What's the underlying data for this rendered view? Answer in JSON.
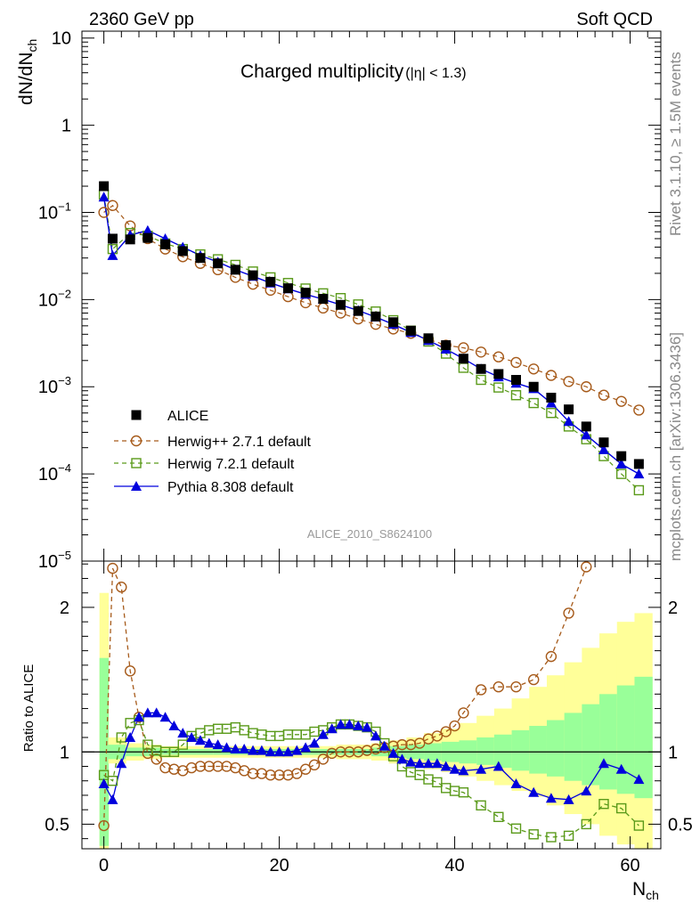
{
  "header": {
    "energy_label": "2360 GeV pp",
    "process_label": "Soft QCD"
  },
  "side_labels": {
    "rivet": "Rivet 3.1.10, ≥ 1.5M events",
    "mcplots": "mcplots.cern.ch [arXiv:1306.3436]"
  },
  "analysis_id": "ALICE_2010_S8624100",
  "chart_data": [
    {
      "type": "scatter",
      "title": "Charged multiplicity",
      "title_cut": "(|η| < 1.3)",
      "ylabel": "dN/dN",
      "ylabel_sub": "ch",
      "yscale": "log",
      "ylim": [
        1e-05,
        12
      ],
      "xlim": [
        -2.5,
        63.5
      ],
      "yticks": [
        {
          "v": 10,
          "base": "10",
          "exp": ""
        },
        {
          "v": 1,
          "base": "1",
          "exp": ""
        },
        {
          "v": 0.1,
          "base": "10",
          "exp": "−1"
        },
        {
          "v": 0.01,
          "base": "10",
          "exp": "−2"
        },
        {
          "v": 0.001,
          "base": "10",
          "exp": "−3"
        },
        {
          "v": 0.0001,
          "base": "10",
          "exp": "−4"
        },
        {
          "v": 1e-05,
          "base": "10",
          "exp": "−5"
        }
      ],
      "legend_position": "bottom-left",
      "series": [
        {
          "name": "ALICE",
          "color": "#000000",
          "marker": "filled-square",
          "x": [
            0,
            1,
            3,
            5,
            7,
            9,
            11,
            13,
            15,
            17,
            19,
            21,
            23,
            25,
            27,
            29,
            31,
            33,
            35,
            37,
            39,
            41,
            43,
            45,
            47,
            49,
            51,
            53,
            55,
            57,
            59,
            61
          ],
          "y": [
            0.2,
            0.05,
            0.049,
            0.051,
            0.043,
            0.036,
            0.03,
            0.026,
            0.022,
            0.019,
            0.016,
            0.0135,
            0.012,
            0.0102,
            0.0087,
            0.0074,
            0.0064,
            0.0055,
            0.0044,
            0.0036,
            0.003,
            0.0021,
            0.0016,
            0.0014,
            0.0012,
            0.001,
            0.00075,
            0.00055,
            0.00035,
            0.00023,
            0.00016,
            0.00013
          ]
        },
        {
          "name": "Herwig++ 2.7.1 default",
          "color": "#a65a1a",
          "marker": "open-circle",
          "x": [
            0,
            1,
            3,
            5,
            7,
            9,
            11,
            13,
            15,
            17,
            19,
            21,
            23,
            25,
            27,
            29,
            31,
            33,
            35,
            37,
            39,
            41,
            43,
            45,
            47,
            49,
            51,
            53,
            55,
            57,
            59,
            61
          ],
          "y": [
            0.1,
            0.12,
            0.07,
            0.05,
            0.038,
            0.031,
            0.026,
            0.022,
            0.018,
            0.015,
            0.0128,
            0.0108,
            0.0092,
            0.008,
            0.007,
            0.006,
            0.0052,
            0.0046,
            0.0041,
            0.0035,
            0.003,
            0.0028,
            0.0025,
            0.0022,
            0.0019,
            0.0016,
            0.00135,
            0.00115,
            0.001,
            0.0008,
            0.00068,
            0.00054
          ]
        },
        {
          "name": "Herwig 7.2.1 default",
          "color": "#5a9a1a",
          "marker": "open-square",
          "x": [
            0,
            1,
            3,
            5,
            7,
            9,
            11,
            13,
            15,
            17,
            19,
            21,
            23,
            25,
            27,
            29,
            31,
            33,
            35,
            37,
            39,
            41,
            43,
            45,
            47,
            49,
            51,
            53,
            55,
            57,
            59,
            61
          ],
          "y": [
            0.16,
            0.038,
            0.058,
            0.054,
            0.044,
            0.038,
            0.033,
            0.029,
            0.025,
            0.021,
            0.018,
            0.0155,
            0.0134,
            0.0118,
            0.0104,
            0.0088,
            0.0073,
            0.0058,
            0.0044,
            0.0033,
            0.0024,
            0.00165,
            0.0012,
            0.00098,
            0.0008,
            0.00065,
            0.0005,
            0.00035,
            0.00025,
            0.00016,
            0.0001,
            6.5e-05
          ]
        },
        {
          "name": "Pythia 8.308 default",
          "color": "#0000dd",
          "marker": "filled-triangle",
          "x": [
            0,
            1,
            3,
            5,
            7,
            9,
            11,
            13,
            15,
            17,
            19,
            21,
            23,
            25,
            27,
            29,
            31,
            33,
            35,
            37,
            39,
            41,
            43,
            45,
            47,
            49,
            51,
            53,
            55,
            57,
            59,
            61
          ],
          "y": [
            0.15,
            0.032,
            0.055,
            0.062,
            0.05,
            0.04,
            0.032,
            0.027,
            0.022,
            0.0185,
            0.0155,
            0.0133,
            0.0115,
            0.0101,
            0.0087,
            0.0075,
            0.0063,
            0.0052,
            0.0042,
            0.0034,
            0.0027,
            0.0021,
            0.0016,
            0.0013,
            0.0011,
            0.00095,
            0.00065,
            0.0004,
            0.00028,
            0.00019,
            0.00013,
            0.0001
          ]
        }
      ]
    },
    {
      "type": "line",
      "ylabel": "Ratio to ALICE",
      "xlabel": "N",
      "xlabel_sub": "ch",
      "xlim": [
        -2.5,
        63.5
      ],
      "ylim": [
        0.33,
        2.32
      ],
      "xticks": [
        0,
        20,
        40,
        60
      ],
      "yticks": [
        0.5,
        1,
        2
      ],
      "reference_line": 1,
      "uncertainty_bands": {
        "inner_color": "#99ff99",
        "outer_color": "#ffff99",
        "x_edges": [
          -0.5,
          0.5,
          2.5,
          4.5,
          6.5,
          8.5,
          10.5,
          12.5,
          14.5,
          16.5,
          18.5,
          20.5,
          22.5,
          24.5,
          26.5,
          28.5,
          30.5,
          32.5,
          34.5,
          36.5,
          38.5,
          40.5,
          42.5,
          44.5,
          46.5,
          48.5,
          50.5,
          52.5,
          54.5,
          56.5,
          58.5,
          60.5,
          62.5
        ],
        "inner_lo": [
          0.35,
          0.95,
          0.97,
          0.97,
          0.98,
          0.98,
          0.98,
          0.98,
          0.98,
          0.98,
          0.98,
          0.98,
          0.98,
          0.98,
          0.98,
          0.98,
          0.97,
          0.96,
          0.95,
          0.94,
          0.93,
          0.92,
          0.91,
          0.89,
          0.87,
          0.85,
          0.83,
          0.8,
          0.77,
          0.74,
          0.71,
          0.68
        ],
        "inner_hi": [
          1.65,
          1.05,
          1.03,
          1.03,
          1.02,
          1.02,
          1.02,
          1.02,
          1.02,
          1.02,
          1.02,
          1.02,
          1.02,
          1.02,
          1.02,
          1.02,
          1.03,
          1.04,
          1.05,
          1.06,
          1.07,
          1.08,
          1.1,
          1.12,
          1.15,
          1.18,
          1.22,
          1.27,
          1.33,
          1.4,
          1.46,
          1.52
        ],
        "outer_lo": [
          0.33,
          0.92,
          0.94,
          0.95,
          0.96,
          0.96,
          0.96,
          0.96,
          0.96,
          0.96,
          0.96,
          0.96,
          0.96,
          0.96,
          0.95,
          0.95,
          0.94,
          0.92,
          0.9,
          0.88,
          0.86,
          0.83,
          0.8,
          0.77,
          0.73,
          0.69,
          0.63,
          0.57,
          0.5,
          0.42,
          0.36,
          0.33
        ],
        "outer_hi": [
          2.1,
          1.1,
          1.06,
          1.05,
          1.04,
          1.04,
          1.04,
          1.04,
          1.04,
          1.04,
          1.04,
          1.04,
          1.04,
          1.04,
          1.05,
          1.05,
          1.06,
          1.08,
          1.1,
          1.13,
          1.16,
          1.2,
          1.25,
          1.3,
          1.37,
          1.45,
          1.53,
          1.62,
          1.72,
          1.82,
          1.9,
          1.96
        ]
      },
      "series": [
        {
          "name": "Herwig++ 2.7.1 default",
          "color": "#a65a1a",
          "marker": "open-circle",
          "x": [
            0,
            1,
            2,
            3,
            4,
            5,
            6,
            7,
            8,
            9,
            10,
            11,
            12,
            13,
            14,
            15,
            16,
            17,
            18,
            19,
            20,
            21,
            22,
            23,
            24,
            25,
            26,
            27,
            28,
            29,
            30,
            31,
            32,
            33,
            34,
            35,
            36,
            37,
            38,
            39,
            40,
            41,
            43,
            45,
            47,
            49,
            51,
            53,
            55
          ],
          "y": [
            0.49,
            2.27,
            2.14,
            1.56,
            1.24,
            0.99,
            0.95,
            0.89,
            0.88,
            0.87,
            0.89,
            0.9,
            0.9,
            0.9,
            0.9,
            0.89,
            0.87,
            0.85,
            0.85,
            0.84,
            0.84,
            0.84,
            0.85,
            0.88,
            0.91,
            0.95,
            0.99,
            1,
            1,
            1,
            1.01,
            1.02,
            1.03,
            1.04,
            1.05,
            1.05,
            1.06,
            1.09,
            1.11,
            1.14,
            1.18,
            1.27,
            1.43,
            1.45,
            1.45,
            1.5,
            1.66,
            1.96,
            2.28
          ]
        },
        {
          "name": "Herwig 7.2.1 default",
          "color": "#5a9a1a",
          "marker": "open-square",
          "x": [
            0,
            1,
            2,
            3,
            4,
            5,
            6,
            7,
            8,
            9,
            10,
            11,
            12,
            13,
            14,
            15,
            16,
            17,
            18,
            19,
            20,
            21,
            22,
            23,
            24,
            25,
            26,
            27,
            28,
            29,
            30,
            31,
            32,
            33,
            34,
            35,
            36,
            37,
            38,
            39,
            40,
            41,
            43,
            45,
            47,
            49,
            51,
            53,
            55,
            57,
            59,
            61
          ],
          "y": [
            0.84,
            0.8,
            1.1,
            1.2,
            1.22,
            1.05,
            1.01,
            1,
            1,
            1.05,
            1.11,
            1.13,
            1.15,
            1.16,
            1.16,
            1.17,
            1.15,
            1.13,
            1.12,
            1.11,
            1.11,
            1.12,
            1.12,
            1.12,
            1.14,
            1.15,
            1.17,
            1.19,
            1.19,
            1.18,
            1.17,
            1.14,
            1.06,
            0.97,
            0.9,
            0.86,
            0.84,
            0.81,
            0.79,
            0.75,
            0.73,
            0.72,
            0.63,
            0.55,
            0.47,
            0.43,
            0.41,
            0.42,
            0.5,
            0.64,
            0.61,
            0.49
          ]
        },
        {
          "name": "Pythia 8.308 default",
          "color": "#0000dd",
          "marker": "filled-triangle",
          "x": [
            0,
            1,
            2,
            3,
            4,
            5,
            6,
            7,
            8,
            9,
            10,
            11,
            12,
            13,
            14,
            15,
            16,
            17,
            18,
            19,
            20,
            21,
            22,
            23,
            24,
            25,
            26,
            27,
            28,
            29,
            30,
            31,
            32,
            33,
            34,
            35,
            36,
            37,
            38,
            39,
            40,
            41,
            43,
            45,
            47,
            49,
            51,
            53,
            55,
            57,
            59,
            61
          ],
          "y": [
            0.78,
            0.67,
            0.92,
            1.1,
            1.24,
            1.27,
            1.27,
            1.24,
            1.18,
            1.13,
            1.1,
            1.08,
            1.06,
            1.05,
            1.03,
            1.02,
            1.02,
            1.01,
            1.01,
            1.0,
            1.0,
            1.0,
            1.01,
            1.03,
            1.06,
            1.12,
            1.16,
            1.19,
            1.19,
            1.18,
            1.17,
            1.11,
            1.04,
            0.99,
            0.95,
            0.93,
            0.92,
            0.92,
            0.92,
            0.9,
            0.88,
            0.87,
            0.88,
            0.9,
            0.78,
            0.72,
            0.68,
            0.67,
            0.73,
            0.92,
            0.88,
            0.81
          ]
        }
      ]
    }
  ]
}
